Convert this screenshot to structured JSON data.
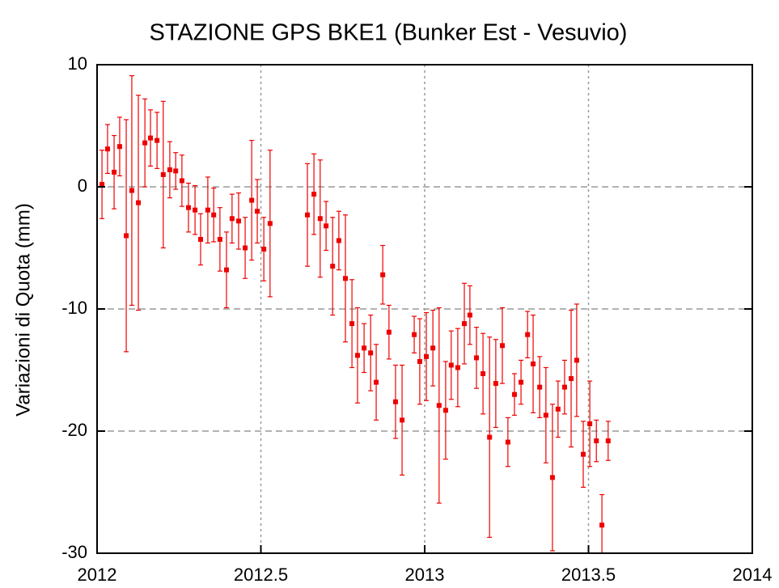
{
  "chart_data": {
    "type": "errorbar",
    "title": "STAZIONE GPS BKE1 (Bunker Est - Vesuvio)",
    "y_label": "Variazioni di Quota (mm)",
    "color": "#ee0000",
    "grid": true,
    "xlim": [
      2012,
      2014
    ],
    "xticks": [
      2012,
      2012.5,
      2013,
      2013.5,
      2014
    ],
    "ylim": [
      -30,
      10
    ],
    "yticks": [
      10,
      0,
      -10,
      -20,
      -30
    ],
    "x": [
      2012.015,
      2012.032,
      2012.052,
      2012.069,
      2012.089,
      2012.106,
      2012.126,
      2012.146,
      2012.163,
      2012.183,
      2012.202,
      2012.222,
      2012.24,
      2012.259,
      2012.279,
      2012.299,
      2012.316,
      2012.338,
      2012.356,
      2012.375,
      2012.395,
      2012.412,
      2012.432,
      2012.452,
      2012.472,
      2012.489,
      2012.509,
      2012.528,
      2012.642,
      2012.662,
      2012.681,
      2012.699,
      2012.719,
      2012.738,
      2012.758,
      2012.778,
      2012.795,
      2012.815,
      2012.835,
      2012.852,
      2012.872,
      2012.891,
      2012.911,
      2012.931,
      2012.968,
      2012.985,
      2013.005,
      2013.025,
      2013.044,
      2013.064,
      2013.081,
      2013.101,
      2013.121,
      2013.138,
      2013.158,
      2013.178,
      2013.198,
      2013.217,
      2013.237,
      2013.254,
      2013.274,
      2013.294,
      2013.314,
      2013.331,
      2013.351,
      2013.37,
      2013.39,
      2013.407,
      2013.427,
      2013.447,
      2013.464,
      2013.484,
      2013.504,
      2013.524,
      2013.541,
      2013.56
    ],
    "values": [
      0.2,
      3.1,
      1.2,
      3.3,
      -4.0,
      -0.3,
      -1.3,
      3.6,
      4.0,
      3.8,
      1.0,
      1.4,
      1.3,
      0.5,
      -1.7,
      -1.9,
      -4.3,
      -1.9,
      -2.3,
      -4.3,
      -6.8,
      -2.6,
      -2.8,
      -5.0,
      -1.1,
      -2.0,
      -5.1,
      -3.0,
      -2.3,
      -0.6,
      -2.6,
      -3.2,
      -6.5,
      -4.4,
      -7.5,
      -11.2,
      -13.8,
      -13.2,
      -13.6,
      -16.0,
      -7.2,
      -11.9,
      -17.6,
      -19.1,
      -12.1,
      -14.3,
      -13.9,
      -13.2,
      -17.9,
      -18.3,
      -14.6,
      -14.8,
      -11.2,
      -10.5,
      -14.0,
      -15.3,
      -20.5,
      -16.1,
      -13.0,
      -20.9,
      -17.0,
      -16.0,
      -12.1,
      -14.5,
      -16.4,
      -18.7,
      -23.8,
      -18.2,
      -16.4,
      -15.7,
      -14.2,
      -21.9,
      -19.4,
      -20.8,
      -27.7,
      -20.8
    ],
    "errors": [
      2.8,
      2.0,
      3.0,
      2.4,
      9.5,
      9.4,
      8.8,
      3.6,
      2.3,
      2.3,
      6.0,
      2.3,
      1.5,
      2.1,
      2.0,
      2.0,
      2.1,
      2.7,
      2.2,
      2.6,
      3.1,
      2.0,
      2.3,
      2.5,
      4.9,
      2.6,
      2.6,
      6.0,
      4.2,
      3.3,
      4.8,
      2.0,
      4.0,
      2.4,
      5.2,
      3.6,
      3.9,
      2.0,
      3.1,
      3.1,
      2.4,
      2.2,
      3.0,
      4.5,
      1.5,
      3.5,
      3.6,
      3.1,
      8.0,
      4.0,
      2.8,
      3.2,
      3.3,
      2.4,
      2.5,
      3.3,
      8.2,
      3.6,
      3.1,
      2.0,
      1.7,
      1.8,
      1.9,
      4.0,
      2.5,
      3.9,
      6.0,
      2.3,
      2.2,
      5.6,
      4.6,
      2.7,
      3.5,
      1.7,
      2.5,
      1.6
    ]
  }
}
